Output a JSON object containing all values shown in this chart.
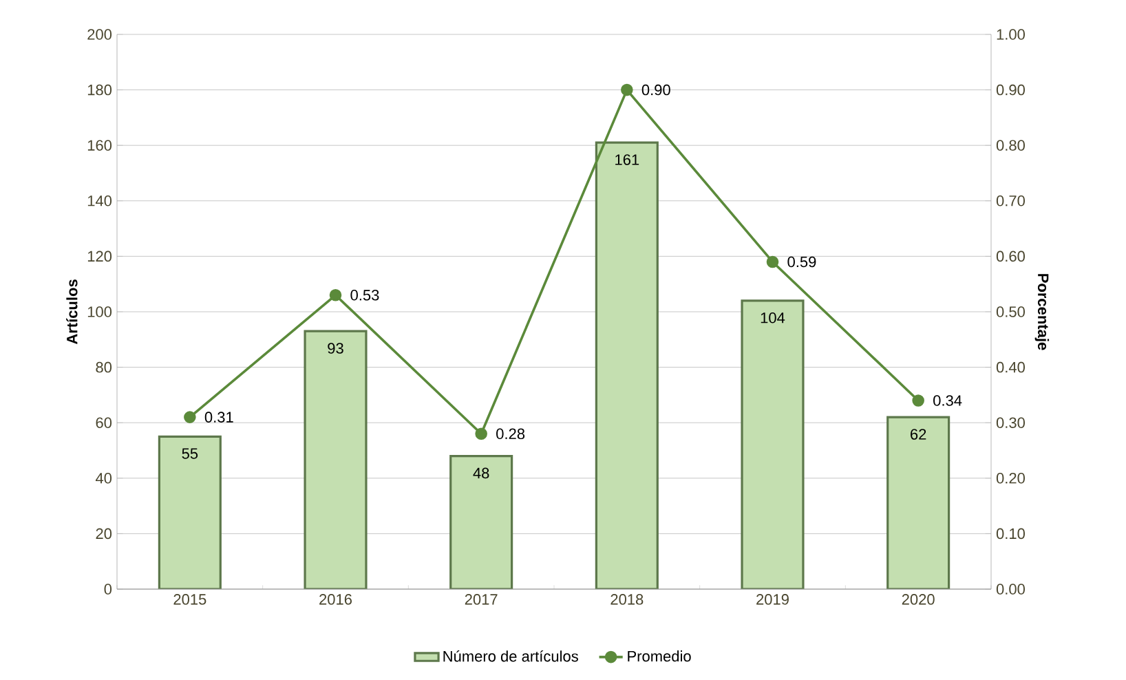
{
  "chart_data": {
    "type": "bar",
    "ylabel": "Artículos",
    "y2label": "Porcentaje",
    "categories": [
      "2015",
      "2016",
      "2017",
      "2018",
      "2019",
      "2020"
    ],
    "series": [
      {
        "name": "Número de artículos",
        "color": "#c4dfb0",
        "values": [
          55,
          93,
          48,
          161,
          104,
          62
        ],
        "value_labels": [
          "55",
          "93",
          "48",
          "161",
          "104",
          "62"
        ]
      },
      {
        "name": "Promedio",
        "type": "line",
        "axis": "y2",
        "color": "#5b8a3a",
        "marker": "circle",
        "values": [
          0.31,
          0.53,
          0.28,
          0.9,
          0.59,
          0.34
        ],
        "value_labels": [
          "0.31",
          "0.53",
          "0.28",
          "0.90",
          "0.59",
          "0.34"
        ]
      }
    ],
    "ylim": [
      0,
      200
    ],
    "yticks": [
      0,
      20,
      40,
      60,
      80,
      100,
      120,
      140,
      160,
      180,
      200
    ],
    "y2lim": [
      0,
      1
    ],
    "y2ticks": [
      {
        "value": 0,
        "label": "0.00"
      },
      {
        "value": 0.1,
        "label": "0.10"
      },
      {
        "value": 0.2,
        "label": "0.20"
      },
      {
        "value": 0.3,
        "label": "0.30"
      },
      {
        "value": 0.4,
        "label": "0.40"
      },
      {
        "value": 0.5,
        "label": "0.50"
      },
      {
        "value": 0.6,
        "label": "0.60"
      },
      {
        "value": 0.7,
        "label": "0.70"
      },
      {
        "value": 0.8,
        "label": "0.80"
      },
      {
        "value": 0.9,
        "label": "0.90"
      },
      {
        "value": 1,
        "label": "1.00"
      }
    ],
    "grid": "y",
    "legend": "bottom"
  }
}
